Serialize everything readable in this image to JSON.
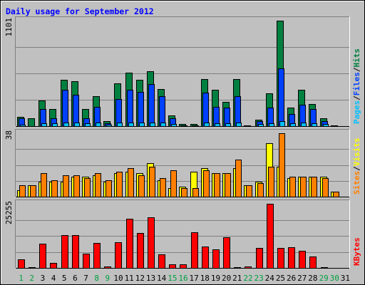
{
  "chart_data": {
    "type": "bar",
    "title": "Daily usage for September 2012",
    "categories": [
      "1",
      "2",
      "3",
      "4",
      "5",
      "6",
      "7",
      "8",
      "9",
      "10",
      "11",
      "12",
      "13",
      "14",
      "15",
      "16",
      "17",
      "18",
      "19",
      "20",
      "21",
      "22",
      "23",
      "24",
      "25",
      "26",
      "27",
      "28",
      "29",
      "30",
      "31"
    ],
    "weekend_days": [
      "1",
      "2",
      "8",
      "9",
      "15",
      "16",
      "22",
      "23",
      "29",
      "30"
    ],
    "colors": {
      "title": "#0000ff",
      "background": "#c0c0c0",
      "hits": "#008040",
      "files": "#0040ff",
      "pages": "#00c0ff",
      "visits": "#ffff00",
      "sites": "#ff8000",
      "kbytes": "#ff0000",
      "weekend_label": "#00a040",
      "weekday_label": "#000000"
    },
    "panels": [
      {
        "id": "hits-files-pages",
        "ymax_label": "1101",
        "ylim": [
          0,
          1101
        ],
        "legend": [
          {
            "label": "Pages",
            "color": "#00c0ff"
          },
          {
            "label": "/",
            "color": "#000000"
          },
          {
            "label": "Files",
            "color": "#0040ff"
          },
          {
            "label": "/",
            "color": "#000000"
          },
          {
            "label": "Hits",
            "color": "#008040"
          }
        ],
        "series": [
          {
            "name": "Hits",
            "color": "#008040",
            "values": [
              100,
              80,
              270,
              180,
              480,
              470,
              180,
              310,
              50,
              450,
              560,
              480,
              570,
              390,
              110,
              20,
              20,
              490,
              380,
              250,
              490,
              10,
              70,
              340,
              1101,
              190,
              380,
              230,
              80,
              5,
              0
            ]
          },
          {
            "name": "Files",
            "color": "#0040ff",
            "values": [
              80,
              0,
              180,
              80,
              380,
              330,
              80,
              200,
              30,
              280,
              380,
              360,
              440,
              310,
              80,
              10,
              10,
              350,
              200,
              190,
              310,
              0,
              50,
              190,
              600,
              130,
              220,
              180,
              50,
              0,
              0
            ]
          },
          {
            "name": "Pages",
            "color": "#00c0ff",
            "values": [
              15,
              0,
              30,
              30,
              40,
              35,
              30,
              35,
              15,
              40,
              40,
              35,
              40,
              40,
              20,
              10,
              5,
              35,
              30,
              30,
              40,
              0,
              20,
              30,
              50,
              30,
              35,
              30,
              20,
              0,
              0
            ]
          }
        ]
      },
      {
        "id": "visits-sites",
        "ymax_label": "38",
        "ylim": [
          0,
          38
        ],
        "legend": [
          {
            "label": "Sites",
            "color": "#ff8000"
          },
          {
            "label": "/",
            "color": "#000000"
          },
          {
            "label": "Visits",
            "color": "#ffff00"
          }
        ],
        "series": [
          {
            "name": "Visits",
            "color": "#ffff00",
            "values": [
              4,
              7,
              9,
              9,
              9,
              12,
              12,
              13,
              9,
              14,
              15,
              14,
              20,
              10,
              5,
              6,
              15,
              17,
              14,
              14,
              17,
              7,
              9,
              32,
              18,
              11,
              12,
              12,
              12,
              3,
              0
            ]
          },
          {
            "name": "Sites",
            "color": "#ff8000",
            "values": [
              7,
              7,
              14,
              10,
              13,
              13,
              11,
              14,
              10,
              15,
              17,
              13,
              18,
              11,
              16,
              5,
              5,
              16,
              14,
              14,
              22,
              7,
              8,
              18,
              38,
              12,
              12,
              12,
              11,
              3,
              0
            ]
          }
        ]
      },
      {
        "id": "kbytes",
        "ymax_label": "25255",
        "ylim": [
          0,
          25255
        ],
        "legend": [
          {
            "label": "KBytes",
            "color": "#ff0000"
          }
        ],
        "series": [
          {
            "name": "KBytes",
            "color": "#ff0000",
            "values": [
              3500,
              300,
              9500,
              1900,
              13000,
              13000,
              5500,
              9900,
              600,
              10200,
              19300,
              13700,
              20000,
              5200,
              1300,
              1300,
              14000,
              8500,
              7300,
              12000,
              300,
              600,
              7800,
              25255,
              7800,
              8000,
              6800,
              4500,
              400,
              0,
              0
            ]
          }
        ]
      }
    ]
  }
}
